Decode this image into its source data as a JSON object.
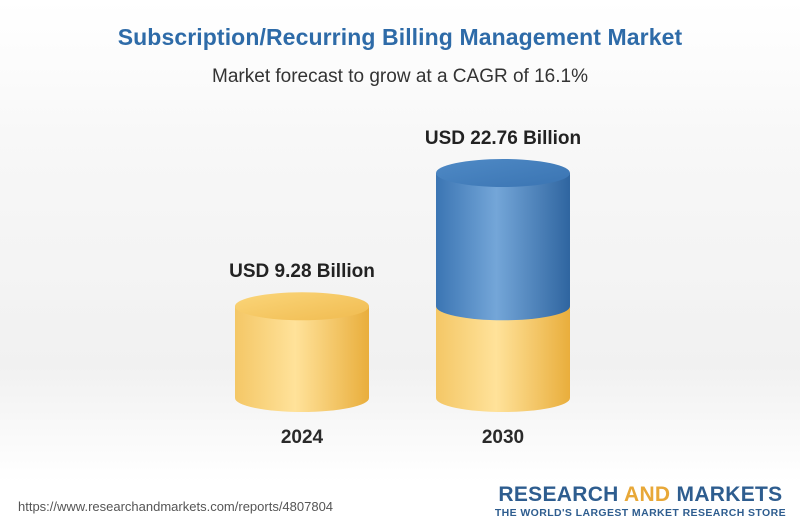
{
  "header": {
    "title": "Subscription/Recurring Billing Management Market",
    "subtitle": "Market forecast to grow at a CAGR of 16.1%"
  },
  "chart_data": {
    "type": "bar",
    "style": "3d-cylinder",
    "categories": [
      "2024",
      "2030"
    ],
    "values": [
      9.28,
      22.76
    ],
    "value_labels": [
      "USD 9.28 Billion",
      "USD 22.76 Billion"
    ],
    "title": "Subscription/Recurring Billing Management Market",
    "subtitle": "Market forecast to grow at a CAGR of 16.1%",
    "unit": "USD Billion",
    "cagr_percent": 16.1,
    "ylim": [
      0,
      22.76
    ],
    "grid": false,
    "colors": {
      "base_segment": "#f3c15a",
      "growth_segment": "#3d7dbf"
    }
  },
  "footer": {
    "source_url": "https://www.researchandmarkets.com/reports/4807804",
    "brand_part1": "RESEARCH ",
    "brand_part2": "AND",
    "brand_part3": " MARKETS",
    "brand_tagline": "THE WORLD'S LARGEST MARKET RESEARCH STORE"
  }
}
